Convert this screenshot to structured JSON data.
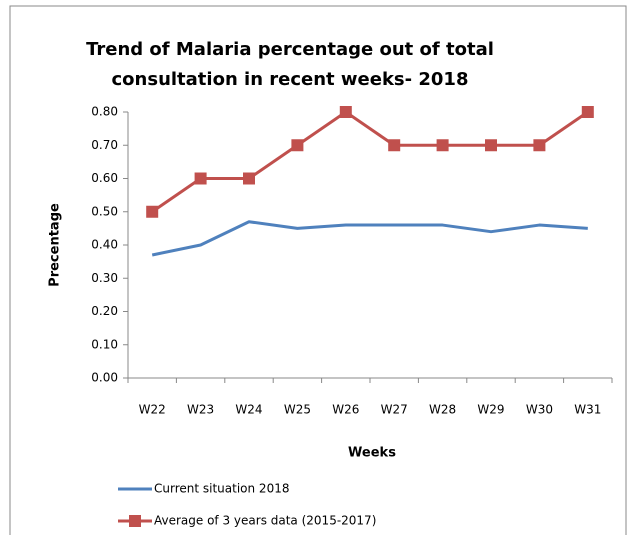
{
  "chart_data": {
    "type": "line",
    "title": [
      "Trend of Malaria  percentage out of total",
      "consultation in recent weeks- 2018"
    ],
    "x_label": "Weeks",
    "y_label": "Precentage",
    "categories": [
      "W22",
      "W23",
      "W24",
      "W25",
      "W26",
      "W27",
      "W28",
      "W29",
      "W30",
      "W31"
    ],
    "series": [
      {
        "name": "Current situation  2018",
        "color": "#4f81bd",
        "marker": "none",
        "values": [
          0.37,
          0.4,
          0.47,
          0.45,
          0.46,
          0.46,
          0.46,
          0.44,
          0.46,
          0.45
        ]
      },
      {
        "name": "Average of 3 years data  (2015-2017)",
        "color": "#c0504d",
        "marker": "square",
        "values": [
          0.5,
          0.6,
          0.6,
          0.7,
          0.8,
          0.7,
          0.7,
          0.7,
          0.7,
          0.8
        ]
      }
    ],
    "ylim": [
      0,
      0.8
    ],
    "yticks": [
      {
        "value": 0,
        "label": "0.00"
      },
      {
        "value": 0.1,
        "label": "0.10"
      },
      {
        "value": 0.2,
        "label": "0.20"
      },
      {
        "value": 0.3,
        "label": "0.30"
      },
      {
        "value": 0.4,
        "label": "0.40"
      },
      {
        "value": 0.5,
        "label": "0.50"
      },
      {
        "value": 0.6,
        "label": "0.60"
      },
      {
        "value": 0.7,
        "label": "0.70"
      },
      {
        "value": 0.8,
        "label": "0.80"
      }
    ],
    "grid": false,
    "legend": "bottom"
  }
}
